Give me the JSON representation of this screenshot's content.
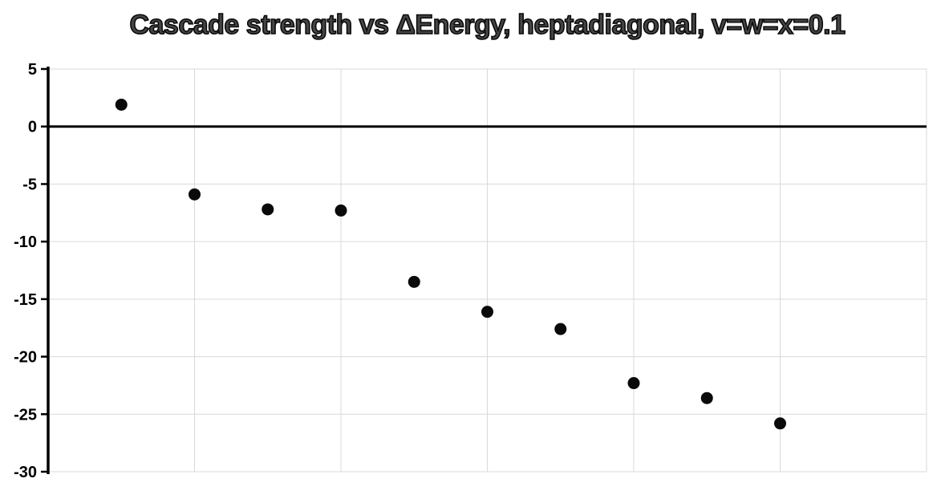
{
  "colors": {
    "background": "#ffffff",
    "title_fill": "#454545",
    "title_outline": "#0a0a0a",
    "axis": "#000000",
    "gridline": "#d9d9d9",
    "point": "#0a0a0a",
    "tick_label": "#000000"
  },
  "chart_data": {
    "type": "scatter",
    "title": "Cascade strength vs ΔEnergy, heptadiagonal, v=w=x=0.1",
    "xlabel": "",
    "ylabel": "",
    "x": [
      0.1,
      0.2,
      0.3,
      0.4,
      0.5,
      0.6,
      0.7,
      0.8,
      0.9,
      1.0
    ],
    "values": [
      1.9,
      -5.9,
      -7.2,
      -7.3,
      -13.5,
      -16.1,
      -17.6,
      -22.3,
      -23.6,
      -25.8
    ],
    "series_name": "",
    "xlim": [
      0,
      1.2
    ],
    "ylim": [
      -30,
      5
    ],
    "y_ticks": [
      5,
      0,
      -5,
      -10,
      -15,
      -20,
      -25,
      -30
    ],
    "x_gridlines": [
      0.2,
      0.4,
      0.6,
      0.8,
      1.0,
      1.2
    ],
    "x_tick_labels_visible": false,
    "grid": true,
    "legend": "none",
    "zero_line": true,
    "marker": "filled-circle",
    "marker_radius_px": 7.5
  }
}
